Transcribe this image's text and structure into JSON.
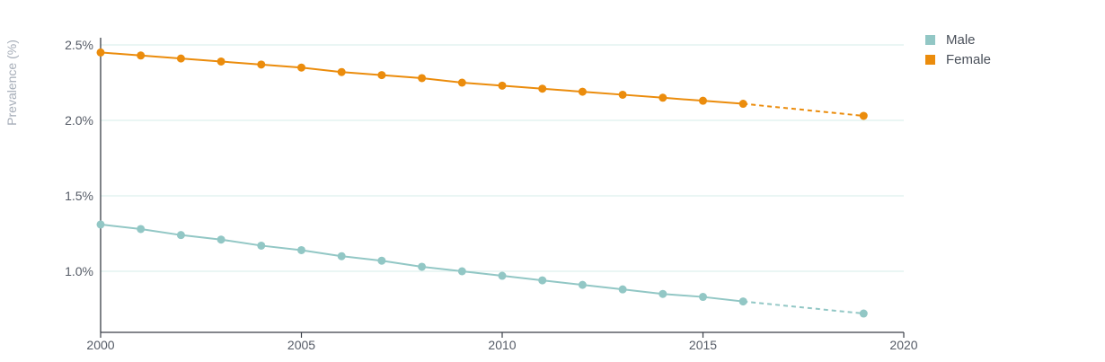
{
  "chart_data": {
    "type": "line",
    "ylabel": "Prevalence (%)",
    "xlim": [
      2000,
      2020
    ],
    "ylim": [
      0.6,
      2.6
    ],
    "x_ticks": [
      2000,
      2005,
      2010,
      2015,
      2020
    ],
    "x_tick_labels": [
      "2000",
      "2005",
      "2010",
      "2015",
      "2020"
    ],
    "y_ticks": [
      1.0,
      1.5,
      2.0,
      2.5
    ],
    "y_tick_labels": [
      "1.0%",
      "1.5%",
      "2.0%",
      "2.5%"
    ],
    "grid": "horizontal",
    "legend_position": "top-right",
    "series": [
      {
        "name": "Male",
        "color": "#92c7c5",
        "x": [
          2000,
          2001,
          2002,
          2003,
          2004,
          2005,
          2006,
          2007,
          2008,
          2009,
          2010,
          2011,
          2012,
          2013,
          2014,
          2015,
          2016,
          2019
        ],
        "values": [
          1.31,
          1.28,
          1.24,
          1.21,
          1.17,
          1.14,
          1.1,
          1.07,
          1.03,
          1.0,
          0.97,
          0.94,
          0.91,
          0.88,
          0.85,
          0.83,
          0.8,
          0.72
        ],
        "projected_from_index": 16
      },
      {
        "name": "Female",
        "color": "#eb8c0c",
        "x": [
          2000,
          2001,
          2002,
          2003,
          2004,
          2005,
          2006,
          2007,
          2008,
          2009,
          2010,
          2011,
          2012,
          2013,
          2014,
          2015,
          2016,
          2019
        ],
        "values": [
          2.45,
          2.43,
          2.41,
          2.39,
          2.37,
          2.35,
          2.32,
          2.3,
          2.28,
          2.25,
          2.23,
          2.21,
          2.19,
          2.17,
          2.15,
          2.13,
          2.11,
          2.03
        ],
        "projected_from_index": 16
      }
    ]
  }
}
